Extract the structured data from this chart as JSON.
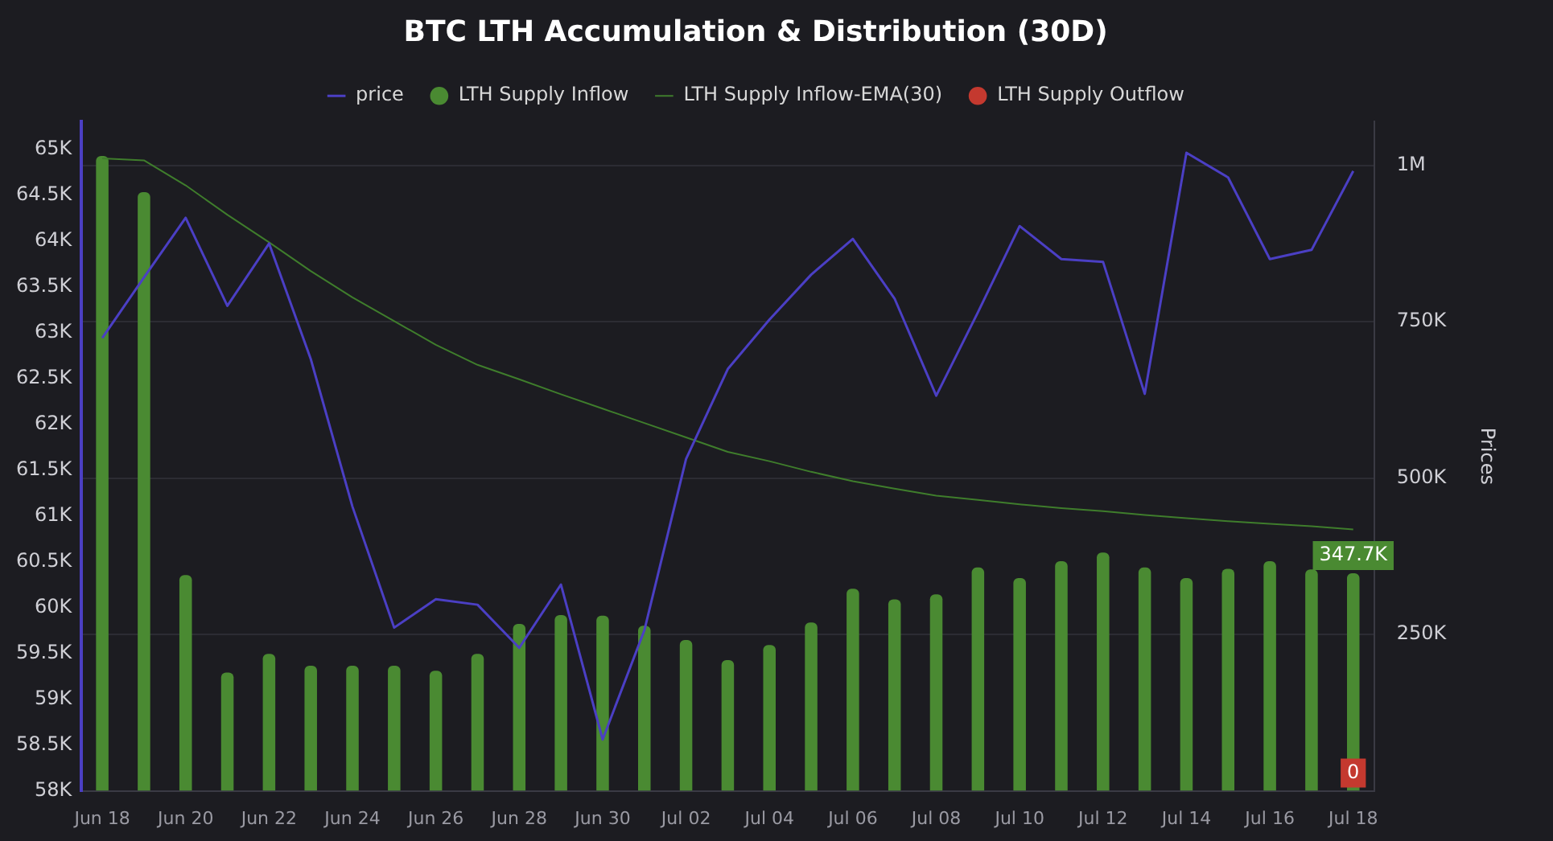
{
  "chart_data": {
    "type": "bar",
    "title": "BTC LTH Accumulation & Distribution (30D)",
    "y2label": "Prices",
    "categories": [
      "Jun 18",
      null,
      "Jun 20",
      null,
      "Jun 22",
      null,
      "Jun 24",
      null,
      "Jun 26",
      null,
      "Jun 28",
      null,
      "Jun 30",
      null,
      "Jul 02",
      null,
      "Jul 04",
      null,
      "Jul 06",
      null,
      "Jul 08",
      null,
      "Jul 10",
      null,
      "Jul 12",
      null,
      "Jul 14",
      null,
      "Jul 16",
      null,
      "Jul 18"
    ],
    "series": [
      {
        "name": "price",
        "type": "line",
        "axis": "y",
        "color": "#4b3fc4",
        "values": [
          62940,
          63600,
          64250,
          63290,
          63970,
          62710,
          61100,
          59780,
          60090,
          60030,
          59560,
          60250,
          58560,
          59750,
          61620,
          62600,
          63140,
          63630,
          64020,
          63370,
          62310,
          63220,
          64160,
          63800,
          63770,
          62330,
          64960,
          64690,
          63800,
          63900,
          64760
        ]
      },
      {
        "name": "LTH Supply Inflow",
        "axis": "y2",
        "color": "#4a8a32",
        "values": [
          1015000,
          957000,
          345000,
          189000,
          219000,
          200000,
          200000,
          200000,
          192000,
          219000,
          267000,
          281000,
          280000,
          264000,
          241000,
          209000,
          233000,
          269000,
          323000,
          306000,
          314000,
          357000,
          340000,
          367000,
          381000,
          357000,
          340000,
          355000,
          367000,
          354000,
          347700
        ],
        "value_labels": [
          null,
          null,
          null,
          null,
          null,
          null,
          null,
          null,
          null,
          null,
          null,
          null,
          null,
          null,
          null,
          null,
          null,
          null,
          null,
          null,
          null,
          null,
          null,
          null,
          null,
          null,
          null,
          null,
          null,
          null,
          "347.7K"
        ]
      },
      {
        "name": "LTH Supply Inflow-EMA(30)",
        "type": "line",
        "axis": "y2",
        "color": "#3f7d2c",
        "values": [
          1011000,
          1008000,
          968000,
          921000,
          877000,
          831000,
          789000,
          751000,
          713000,
          681000,
          658000,
          634000,
          611000,
          588000,
          565000,
          542000,
          527000,
          510000,
          495000,
          483000,
          472000,
          465000,
          458000,
          452000,
          447000,
          441000,
          436000,
          431000,
          427000,
          423000,
          418000
        ]
      },
      {
        "name": "LTH Supply Outflow",
        "axis": "y2",
        "color": "#c4392f",
        "values": [
          0,
          0,
          0,
          0,
          0,
          0,
          0,
          0,
          0,
          0,
          0,
          0,
          0,
          0,
          0,
          0,
          0,
          0,
          0,
          0,
          0,
          0,
          0,
          0,
          0,
          0,
          0,
          0,
          0,
          0,
          0
        ],
        "value_labels": [
          null,
          null,
          null,
          null,
          null,
          null,
          null,
          null,
          null,
          null,
          null,
          null,
          null,
          null,
          null,
          null,
          null,
          null,
          null,
          null,
          null,
          null,
          null,
          null,
          null,
          null,
          null,
          null,
          null,
          null,
          "0"
        ]
      }
    ],
    "ylim": [
      58000,
      65300
    ],
    "yticks": [
      {
        "value": 58000,
        "label": "58K"
      },
      {
        "value": 58500,
        "label": "58.5K"
      },
      {
        "value": 59000,
        "label": "59K"
      },
      {
        "value": 59500,
        "label": "59.5K"
      },
      {
        "value": 60000,
        "label": "60K"
      },
      {
        "value": 60500,
        "label": "60.5K"
      },
      {
        "value": 61000,
        "label": "61K"
      },
      {
        "value": 61500,
        "label": "61.5K"
      },
      {
        "value": 62000,
        "label": "62K"
      },
      {
        "value": 62500,
        "label": "62.5K"
      },
      {
        "value": 63000,
        "label": "63K"
      },
      {
        "value": 63500,
        "label": "63.5K"
      },
      {
        "value": 64000,
        "label": "64K"
      },
      {
        "value": 64500,
        "label": "64.5K"
      },
      {
        "value": 65000,
        "label": "65K"
      }
    ],
    "y2lim": [
      0,
      1070000
    ],
    "y2ticks": [
      {
        "value": 250000,
        "label": "250K"
      },
      {
        "value": 500000,
        "label": "500K"
      },
      {
        "value": 750000,
        "label": "750K"
      },
      {
        "value": 1000000,
        "label": "1M"
      }
    ],
    "grid": "y",
    "legend": "top",
    "marker": "none",
    "line_style": "solid"
  }
}
